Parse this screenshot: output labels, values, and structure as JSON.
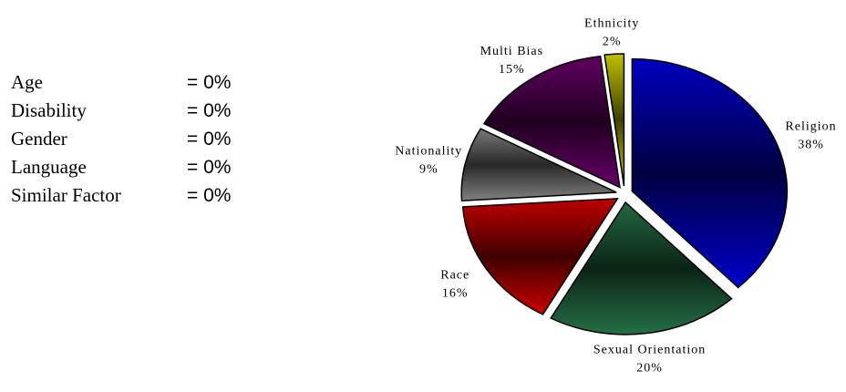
{
  "zero_list": [
    {
      "name": "Age",
      "value": "= 0%"
    },
    {
      "name": "Disability",
      "value": "= 0%"
    },
    {
      "name": "Gender",
      "value": "= 0%"
    },
    {
      "name": "Language",
      "value": "= 0%"
    },
    {
      "name": "Similar Factor",
      "value": "= 0%"
    }
  ],
  "chart_data": {
    "type": "pie",
    "categories": [
      "Religion",
      "Sexual Orientation",
      "Race",
      "Nationality",
      "Multi Bias",
      "Ethnicity"
    ],
    "values": [
      38,
      20,
      16,
      9,
      15,
      2
    ],
    "value_labels": [
      "38%",
      "20%",
      "16%",
      "9%",
      "15%",
      "2%"
    ],
    "colors": [
      "#0000ff",
      "#2e8b57",
      "#ff0000",
      "#a0a0a0",
      "#800080",
      "#ffff00"
    ]
  }
}
